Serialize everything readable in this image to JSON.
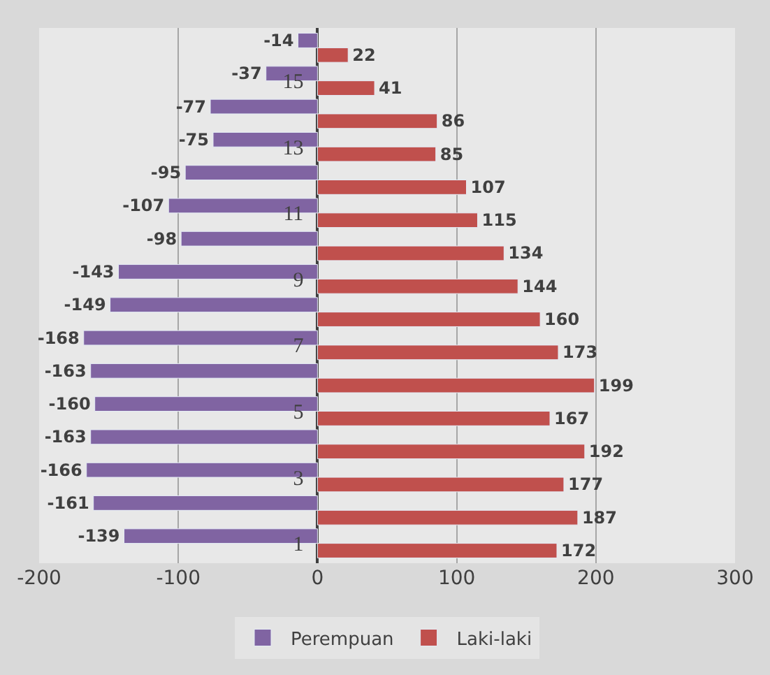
{
  "chart_data": {
    "type": "bar",
    "orientation": "horizontal",
    "categories": [
      null,
      "15",
      null,
      "13",
      null,
      "11",
      null,
      "9",
      null,
      "7",
      null,
      "5",
      null,
      "3",
      null,
      "1"
    ],
    "series": [
      {
        "name": "Perempuan",
        "color": "#8064a2",
        "values": [
          -14,
          -37,
          -77,
          -75,
          -95,
          -107,
          -98,
          -143,
          -149,
          -168,
          -163,
          -160,
          -163,
          -166,
          -161,
          -139
        ]
      },
      {
        "name": "Laki-laki",
        "color": "#c0504d",
        "values": [
          22,
          41,
          86,
          85,
          107,
          115,
          134,
          144,
          160,
          173,
          199,
          167,
          192,
          177,
          187,
          172
        ]
      }
    ],
    "xlim": [
      -200,
      300
    ],
    "xticks": [
      -200,
      -100,
      0,
      100,
      200,
      300
    ],
    "grid": "x",
    "legend": "bottom",
    "data_labels": true
  }
}
